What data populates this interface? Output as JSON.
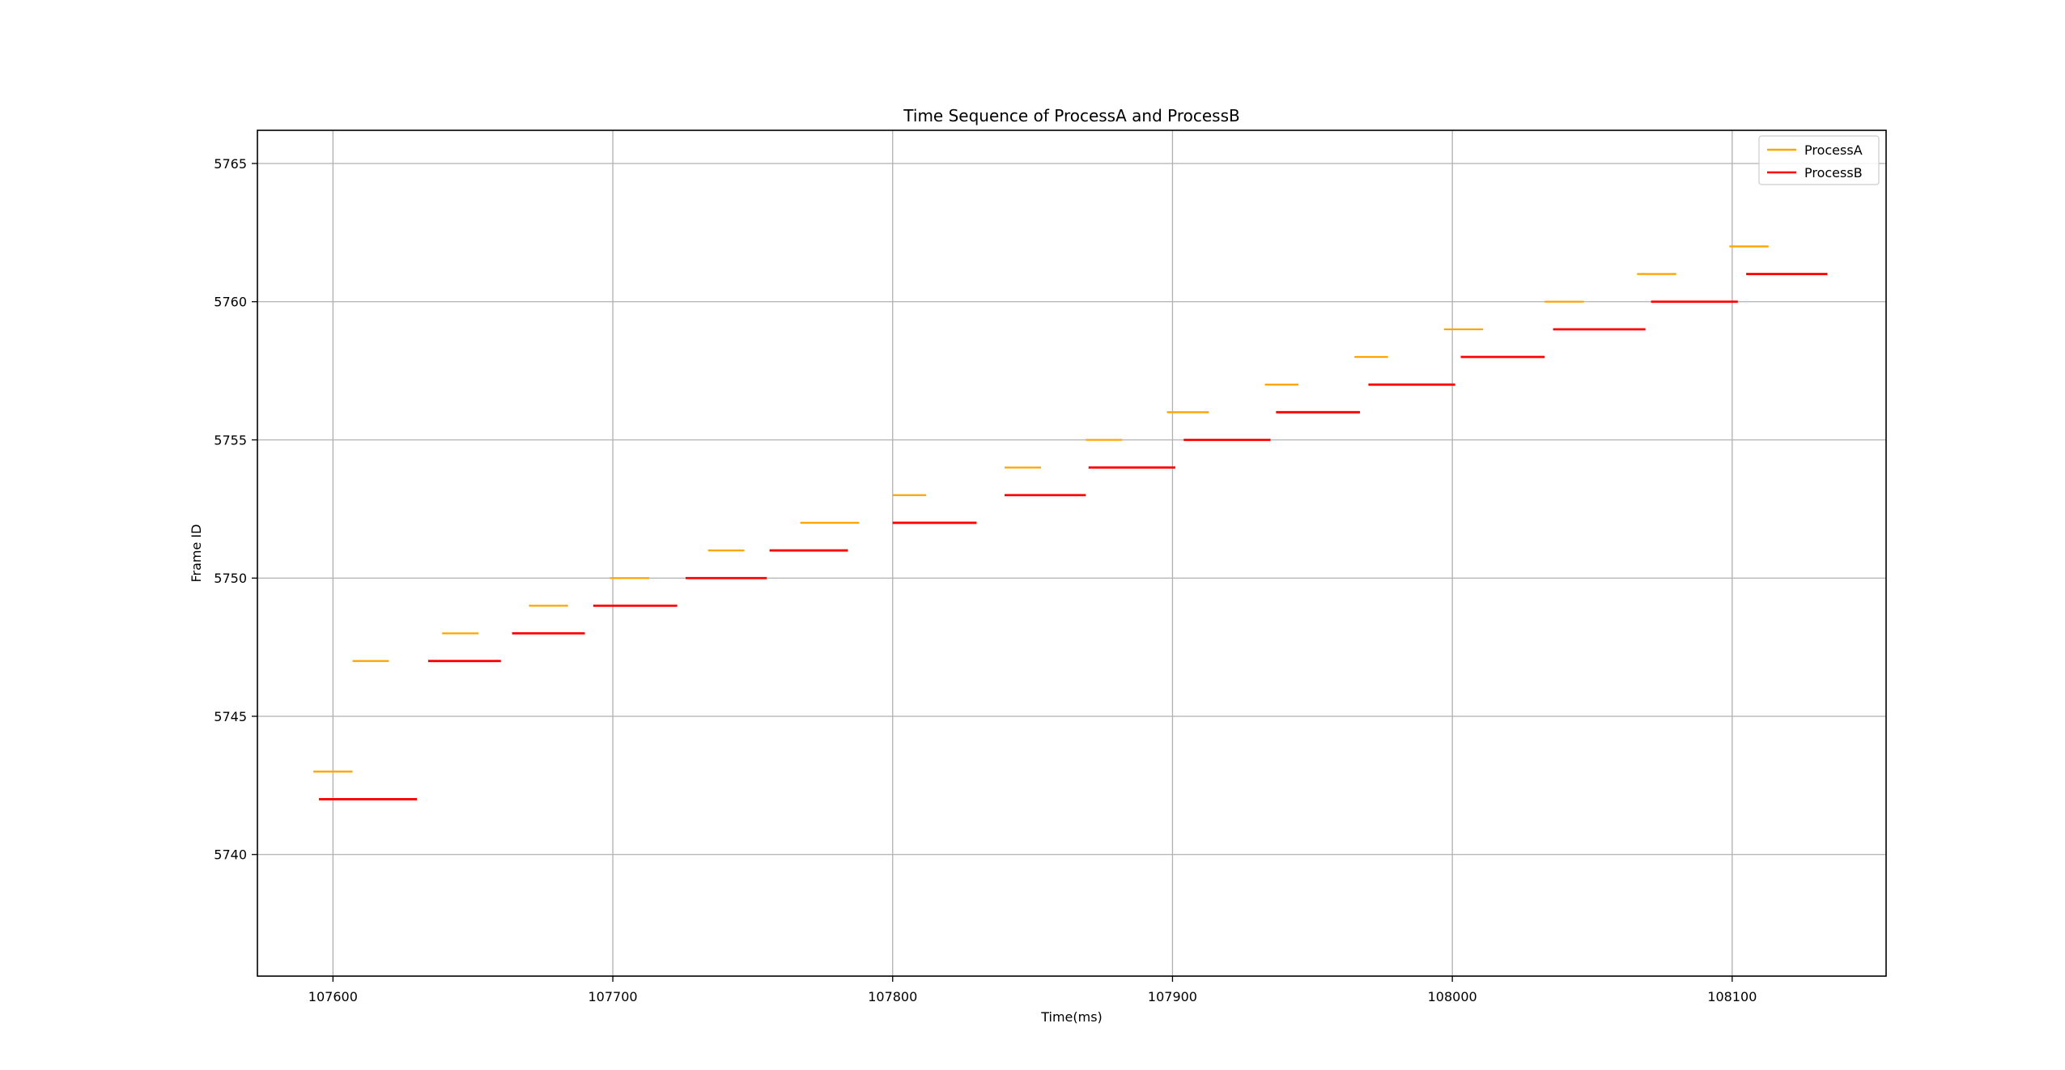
{
  "chart_data": {
    "type": "line",
    "title": "Time Sequence of ProcessA and ProcessB",
    "xlabel": "Time(ms)",
    "ylabel": "Frame ID",
    "xlim": [
      107573,
      108155
    ],
    "ylim": [
      5735.6,
      5766.2
    ],
    "xticks": [
      107600,
      107700,
      107800,
      107900,
      108000,
      108100
    ],
    "yticks": [
      5740,
      5745,
      5750,
      5755,
      5760,
      5765
    ],
    "grid": true,
    "legend": "top-right",
    "series": [
      {
        "name": "ProcessA",
        "color": "#ffa500",
        "segments": [
          {
            "frame": 5743,
            "start": 107593,
            "end": 107607
          },
          {
            "frame": 5747,
            "start": 107607,
            "end": 107620
          },
          {
            "frame": 5748,
            "start": 107639,
            "end": 107652
          },
          {
            "frame": 5749,
            "start": 107670,
            "end": 107684
          },
          {
            "frame": 5750,
            "start": 107699,
            "end": 107713
          },
          {
            "frame": 5751,
            "start": 107734,
            "end": 107747
          },
          {
            "frame": 5752,
            "start": 107767,
            "end": 107788
          },
          {
            "frame": 5753,
            "start": 107800,
            "end": 107812
          },
          {
            "frame": 5754,
            "start": 107840,
            "end": 107853
          },
          {
            "frame": 5755,
            "start": 107869,
            "end": 107882
          },
          {
            "frame": 5756,
            "start": 107898,
            "end": 107913
          },
          {
            "frame": 5757,
            "start": 107933,
            "end": 107945
          },
          {
            "frame": 5758,
            "start": 107965,
            "end": 107977
          },
          {
            "frame": 5759,
            "start": 107997,
            "end": 108011
          },
          {
            "frame": 5760,
            "start": 108033,
            "end": 108047
          },
          {
            "frame": 5761,
            "start": 108066,
            "end": 108080
          },
          {
            "frame": 5762,
            "start": 108099,
            "end": 108113
          }
        ]
      },
      {
        "name": "ProcessB",
        "color": "#ff0000",
        "segments": [
          {
            "frame": 5742,
            "start": 107595,
            "end": 107630
          },
          {
            "frame": 5747,
            "start": 107634,
            "end": 107660
          },
          {
            "frame": 5748,
            "start": 107664,
            "end": 107690
          },
          {
            "frame": 5749,
            "start": 107693,
            "end": 107723
          },
          {
            "frame": 5750,
            "start": 107726,
            "end": 107755
          },
          {
            "frame": 5751,
            "start": 107756,
            "end": 107784
          },
          {
            "frame": 5752,
            "start": 107800,
            "end": 107830
          },
          {
            "frame": 5753,
            "start": 107840,
            "end": 107869
          },
          {
            "frame": 5754,
            "start": 107870,
            "end": 107901
          },
          {
            "frame": 5755,
            "start": 107904,
            "end": 107935
          },
          {
            "frame": 5756,
            "start": 107937,
            "end": 107967
          },
          {
            "frame": 5757,
            "start": 107970,
            "end": 108001
          },
          {
            "frame": 5758,
            "start": 108003,
            "end": 108033
          },
          {
            "frame": 5759,
            "start": 108036,
            "end": 108069
          },
          {
            "frame": 5760,
            "start": 108071,
            "end": 108102
          },
          {
            "frame": 5761,
            "start": 108105,
            "end": 108134
          }
        ]
      }
    ]
  }
}
